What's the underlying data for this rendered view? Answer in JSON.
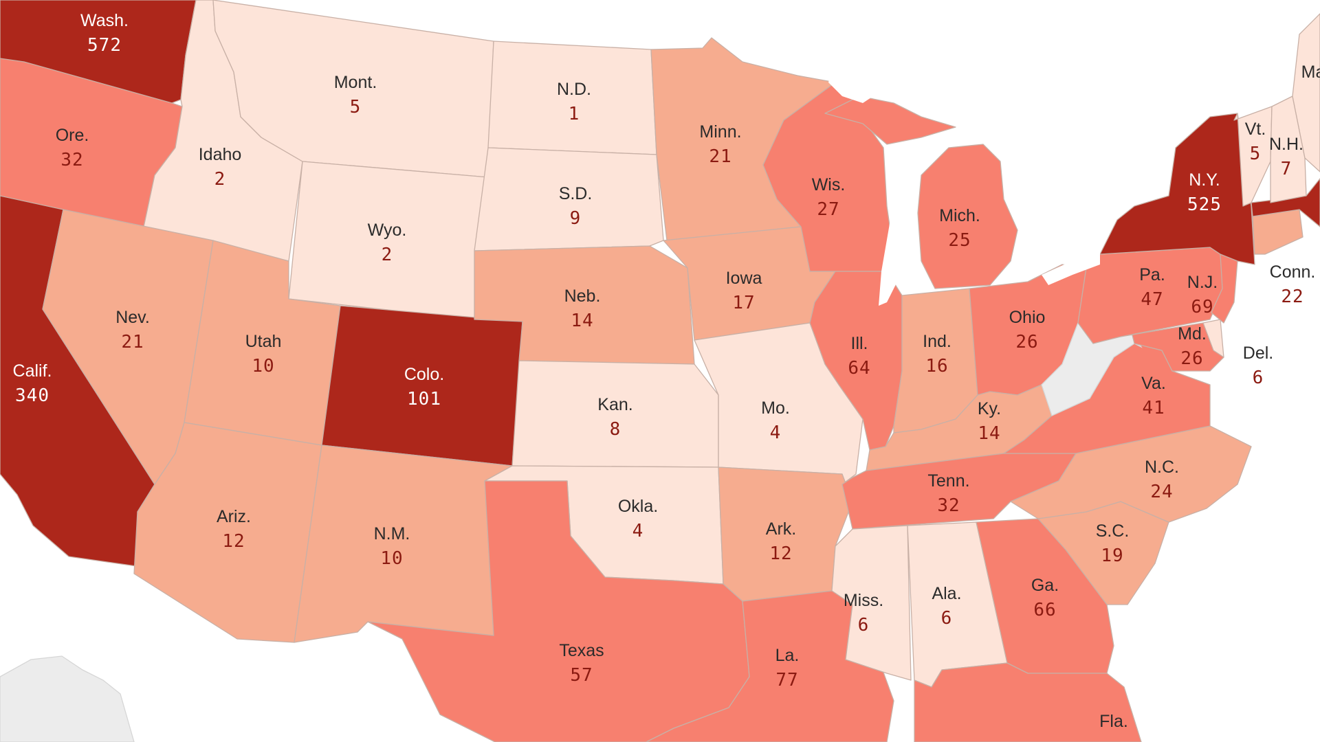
{
  "colors": {
    "level_1": "#fde4d9",
    "level_2": "#f6ac8f",
    "level_3": "#f7806f",
    "level_4": "#ad271b",
    "no_data": "#ececec",
    "dark_text": "#2b2b2b",
    "dark_value": "#8b1a11",
    "light_text": "#ffffff"
  },
  "states": {
    "wa": {
      "name": "Wash.",
      "value": "572",
      "level": 4
    },
    "or": {
      "name": "Ore.",
      "value": "32",
      "level": 3
    },
    "ca": {
      "name": "Calif.",
      "value": "340",
      "level": 4
    },
    "id": {
      "name": "Idaho",
      "value": "2",
      "level": 1
    },
    "nv": {
      "name": "Nev.",
      "value": "21",
      "level": 2
    },
    "mt": {
      "name": "Mont.",
      "value": "5",
      "level": 1
    },
    "wy": {
      "name": "Wyo.",
      "value": "2",
      "level": 1
    },
    "ut": {
      "name": "Utah",
      "value": "10",
      "level": 2
    },
    "az": {
      "name": "Ariz.",
      "value": "12",
      "level": 2
    },
    "co": {
      "name": "Colo.",
      "value": "101",
      "level": 4
    },
    "nm": {
      "name": "N.M.",
      "value": "10",
      "level": 2
    },
    "nd": {
      "name": "N.D.",
      "value": "1",
      "level": 1
    },
    "sd": {
      "name": "S.D.",
      "value": "9",
      "level": 1
    },
    "ne": {
      "name": "Neb.",
      "value": "14",
      "level": 2
    },
    "ks": {
      "name": "Kan.",
      "value": "8",
      "level": 1
    },
    "ok": {
      "name": "Okla.",
      "value": "4",
      "level": 1
    },
    "tx": {
      "name": "Texas",
      "value": "57",
      "level": 3
    },
    "mn": {
      "name": "Minn.",
      "value": "21",
      "level": 2
    },
    "ia": {
      "name": "Iowa",
      "value": "17",
      "level": 2
    },
    "mo": {
      "name": "Mo.",
      "value": "4",
      "level": 1
    },
    "ar": {
      "name": "Ark.",
      "value": "12",
      "level": 2
    },
    "la": {
      "name": "La.",
      "value": "77",
      "level": 3
    },
    "wi": {
      "name": "Wis.",
      "value": "27",
      "level": 3
    },
    "il": {
      "name": "Ill.",
      "value": "64",
      "level": 3
    },
    "mi": {
      "name": "Mich.",
      "value": "25",
      "level": 3
    },
    "in": {
      "name": "Ind.",
      "value": "16",
      "level": 2
    },
    "oh": {
      "name": "Ohio",
      "value": "26",
      "level": 3
    },
    "ky": {
      "name": "Ky.",
      "value": "14",
      "level": 2
    },
    "tn": {
      "name": "Tenn.",
      "value": "32",
      "level": 3
    },
    "ms": {
      "name": "Miss.",
      "value": "6",
      "level": 1
    },
    "al": {
      "name": "Ala.",
      "value": "6",
      "level": 1
    },
    "ga": {
      "name": "Ga.",
      "value": "66",
      "level": 3
    },
    "fl": {
      "name": "Fla.",
      "value": "",
      "level": 3
    },
    "sc": {
      "name": "S.C.",
      "value": "19",
      "level": 2
    },
    "nc": {
      "name": "N.C.",
      "value": "24",
      "level": 2
    },
    "va": {
      "name": "Va.",
      "value": "41",
      "level": 3
    },
    "wv": {
      "name": "",
      "value": "",
      "level": 0
    },
    "md": {
      "name": "Md.",
      "value": "26",
      "level": 3
    },
    "de": {
      "name": "Del.",
      "value": "6",
      "level": 1
    },
    "pa": {
      "name": "Pa.",
      "value": "47",
      "level": 3
    },
    "nj": {
      "name": "N.J.",
      "value": "69",
      "level": 3
    },
    "ny": {
      "name": "N.Y.",
      "value": "525",
      "level": 4
    },
    "ct": {
      "name": "Conn.",
      "value": "22",
      "level": 2
    },
    "ma": {
      "name": "",
      "value": "",
      "level": 4
    },
    "vt": {
      "name": "Vt.",
      "value": "5",
      "level": 1
    },
    "nh": {
      "name": "N.H.",
      "value": "7",
      "level": 1
    },
    "me": {
      "name": "Ma",
      "value": "",
      "level": 1
    }
  }
}
